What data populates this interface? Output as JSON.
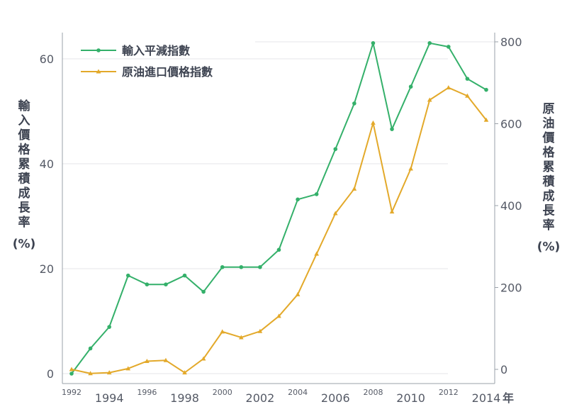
{
  "chart_data": {
    "type": "line",
    "x": [
      1992,
      1993,
      1994,
      1995,
      1996,
      1997,
      1998,
      1999,
      2000,
      2001,
      2002,
      2003,
      2004,
      2005,
      2006,
      2007,
      2008,
      2009,
      2010,
      2011,
      2012,
      2013,
      2014
    ],
    "series": [
      {
        "name": "輸入平減指數",
        "axis": "left",
        "color": "#34b06a",
        "marker": "circle",
        "values": [
          0.0,
          4.8,
          8.9,
          18.7,
          17.0,
          17.0,
          18.7,
          15.6,
          20.3,
          20.3,
          20.3,
          23.6,
          33.2,
          34.2,
          42.8,
          51.5,
          63.0,
          46.6,
          54.7,
          63.0,
          62.3,
          56.2,
          54.1
        ]
      },
      {
        "name": "原油進口價格指數",
        "axis": "right",
        "color": "#e3a92a",
        "marker": "triangle",
        "values": [
          0,
          -10,
          -8,
          2,
          20,
          22,
          -8,
          26,
          92,
          78,
          93,
          130,
          183,
          282,
          381,
          441,
          602,
          385,
          490,
          658,
          688,
          668,
          609
        ]
      }
    ],
    "xticks_major": [
      "1994",
      "1998",
      "2002",
      "2006",
      "2010",
      "2014"
    ],
    "xticks_minor": [
      "1992",
      "1996",
      "2000",
      "2004",
      "2008",
      "2012"
    ],
    "x_unit": "年",
    "ylim_left": [
      -2,
      65
    ],
    "yticks_left": [
      "0",
      "20",
      "40",
      "60"
    ],
    "ylim_right": [
      -30,
      830
    ],
    "yticks_right": [
      "0",
      "200",
      "400",
      "600",
      "800"
    ],
    "ylabel_left": [
      "輸",
      "入",
      "價",
      "格",
      "累",
      "積",
      "成",
      "長",
      "率",
      "(%)"
    ],
    "ylabel_right": [
      "原",
      "油",
      "價",
      "格",
      "累",
      "積",
      "成",
      "長",
      "率",
      "(%)"
    ],
    "legend_position": "top-left",
    "grid": true
  }
}
